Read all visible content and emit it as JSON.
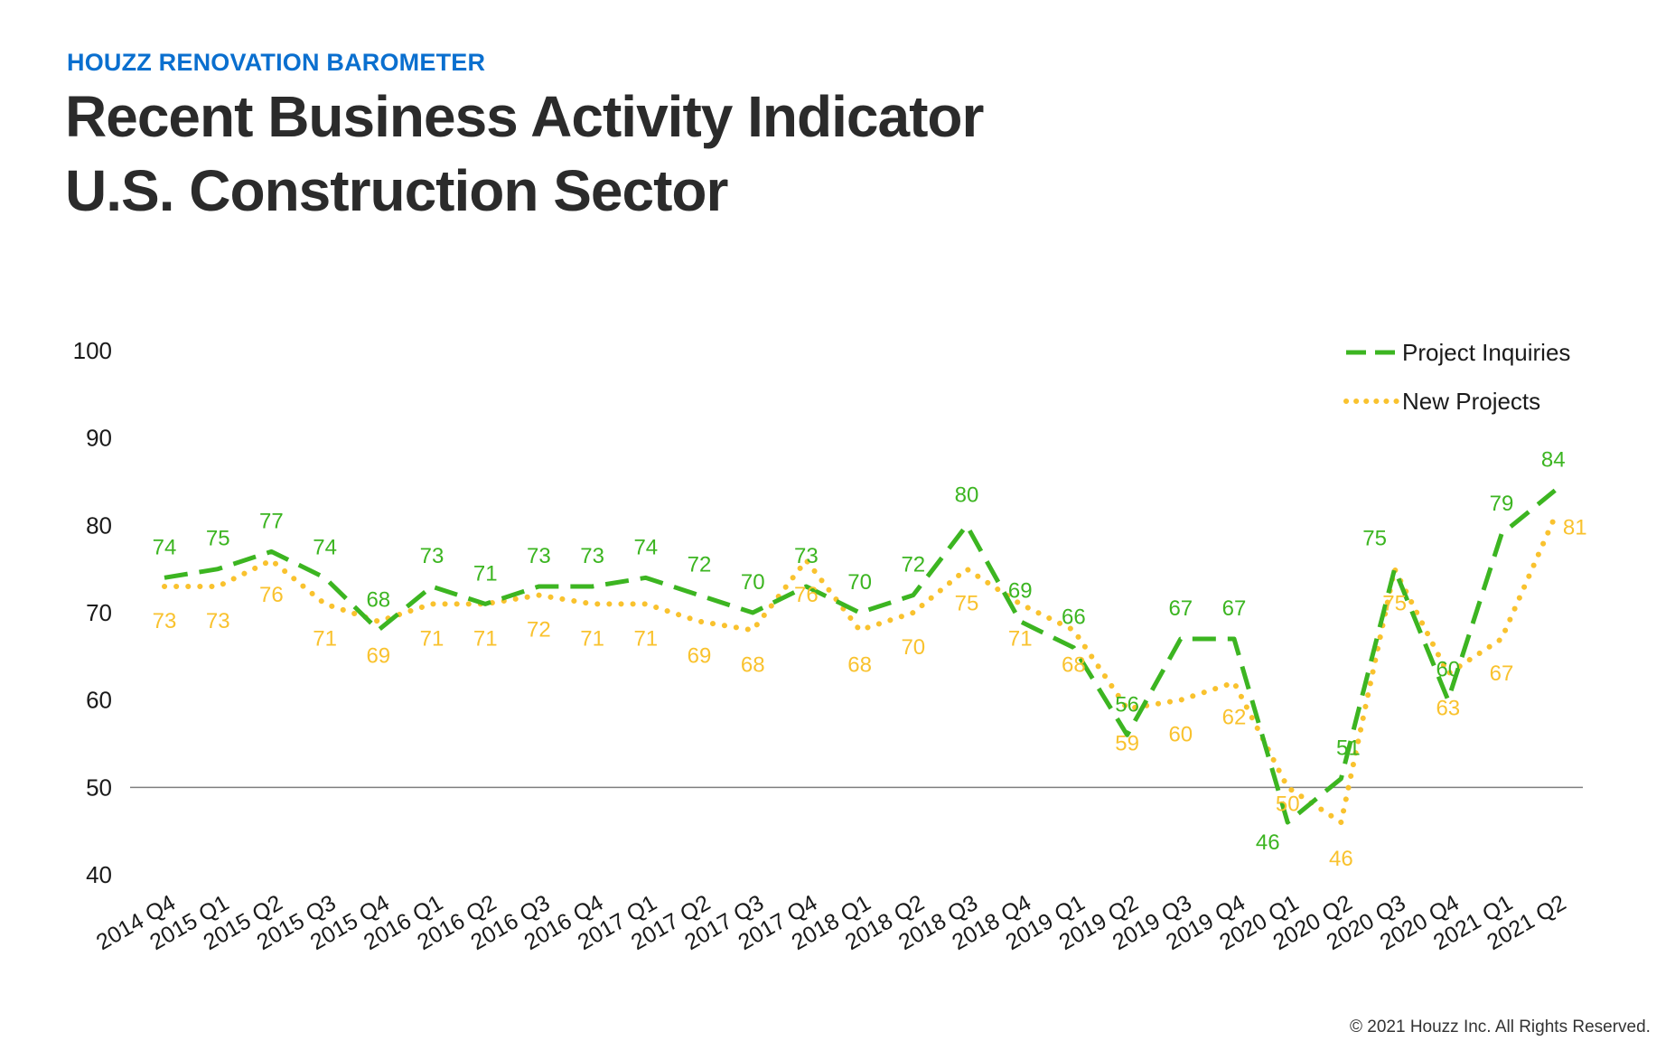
{
  "header": {
    "kicker": "HOUZZ RENOVATION BAROMETER",
    "title_line1": "Recent Business Activity Indicator",
    "title_line2": "U.S. Construction Sector"
  },
  "footer": {
    "copyright": "© 2021 Houzz Inc. All Rights Reserved."
  },
  "colors": {
    "kicker": "#0a6fcf",
    "title": "#2b2b2b",
    "project_inquiries": "#3cb521",
    "new_projects": "#f9c22e",
    "baseline": "#7f7f7f"
  },
  "chart_data": {
    "type": "line",
    "title": "",
    "xlabel": "",
    "ylabel": "",
    "ylim": [
      40,
      100
    ],
    "yticks": [
      100,
      90,
      80,
      70,
      60,
      50,
      40
    ],
    "reference_line": 50,
    "grid": false,
    "legend_position": "top-right",
    "categories": [
      "2014 Q4",
      "2015 Q1",
      "2015 Q2",
      "2015 Q3",
      "2015 Q4",
      "2016 Q1",
      "2016 Q2",
      "2016 Q3",
      "2016 Q4",
      "2017 Q1",
      "2017 Q2",
      "2017 Q3",
      "2017 Q4",
      "2018 Q1",
      "2018 Q2",
      "2018 Q3",
      "2018 Q4",
      "2019 Q1",
      "2019 Q2",
      "2019 Q3",
      "2019 Q4",
      "2020 Q1",
      "2020 Q2",
      "2020 Q3",
      "2020 Q4",
      "2021 Q1",
      "2021 Q2"
    ],
    "series": [
      {
        "name": "Project Inquiries",
        "style": "dashed",
        "color": "#3cb521",
        "values": [
          74,
          75,
          77,
          74,
          68,
          73,
          71,
          73,
          73,
          74,
          72,
          70,
          73,
          70,
          72,
          80,
          69,
          66,
          56,
          67,
          67,
          46,
          51,
          75,
          60,
          79,
          84
        ]
      },
      {
        "name": "New Projects",
        "style": "dotted",
        "color": "#f9c22e",
        "values": [
          73,
          73,
          76,
          71,
          69,
          71,
          71,
          72,
          71,
          71,
          69,
          68,
          76,
          68,
          70,
          75,
          71,
          68,
          59,
          60,
          62,
          50,
          46,
          75,
          63,
          67,
          81
        ]
      }
    ]
  }
}
